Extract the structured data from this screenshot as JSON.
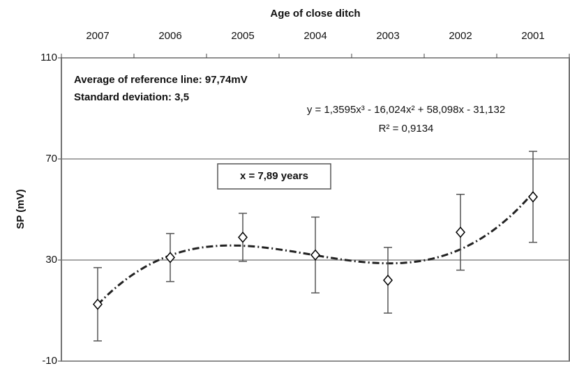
{
  "chart_data": {
    "type": "errorbar",
    "x_label": "Age of close ditch",
    "y_label": "SP (mV)",
    "categories": [
      "2007",
      "2006",
      "2005",
      "2004",
      "2003",
      "2002",
      "2001"
    ],
    "series": [
      {
        "color": "#000000",
        "values": [
          12.5,
          31,
          39,
          32,
          22,
          41,
          55
        ],
        "errors": [
          14.5,
          9.5,
          9.5,
          15,
          13,
          15,
          18
        ]
      }
    ],
    "trend": {
      "coefficients": [
        1.3595,
        -16.024,
        58.098,
        -31.132
      ],
      "color": "#222222",
      "equation": "y = 1,3595x³ - 16,024x² + 58,098x - 31,132",
      "r2_label": "R² = 0,9134"
    },
    "annotations": [
      "Average of reference line: 97,74mV",
      "Standard deviation: 3,5"
    ],
    "boxed_annotation": "x = 7,89 years",
    "ylim": [
      -10,
      110
    ],
    "yticks": [
      -10,
      30,
      70,
      110
    ],
    "grid": true
  }
}
